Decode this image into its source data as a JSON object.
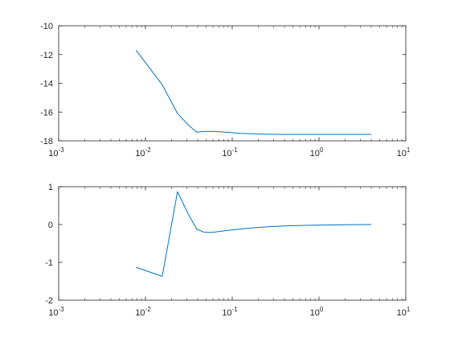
{
  "colors": {
    "line": "#0072BD",
    "axes": "#262626",
    "background": "#ffffff"
  },
  "chart_data": [
    {
      "type": "line",
      "xscale": "log",
      "xlim": [
        0.001,
        10
      ],
      "ylim": [
        -18,
        -10
      ],
      "grid": false,
      "xticks": [
        {
          "value": 0.001,
          "base": "10",
          "exp": "-3"
        },
        {
          "value": 0.01,
          "base": "10",
          "exp": "-2"
        },
        {
          "value": 0.1,
          "base": "10",
          "exp": "-1"
        },
        {
          "value": 1,
          "base": "10",
          "exp": "0"
        },
        {
          "value": 10,
          "base": "10",
          "exp": "1"
        }
      ],
      "yticks": [
        {
          "value": -18,
          "label": "-18"
        },
        {
          "value": -16,
          "label": "-16"
        },
        {
          "value": -14,
          "label": "-14"
        },
        {
          "value": -12,
          "label": "-12"
        },
        {
          "value": -10,
          "label": "-10"
        }
      ],
      "series": [
        {
          "x": [
            0.0078,
            0.0156,
            0.0234,
            0.0312,
            0.039,
            0.0469,
            0.0625,
            0.0938,
            0.125,
            0.1875,
            0.25,
            0.375,
            0.5,
            1,
            2,
            4
          ],
          "y": [
            -11.7,
            -14.1,
            -16.1,
            -16.9,
            -17.4,
            -17.35,
            -17.35,
            -17.42,
            -17.48,
            -17.52,
            -17.54,
            -17.55,
            -17.55,
            -17.55,
            -17.55,
            -17.55
          ]
        }
      ]
    },
    {
      "type": "line",
      "xscale": "log",
      "xlim": [
        0.001,
        10
      ],
      "ylim": [
        -2,
        1
      ],
      "grid": false,
      "xticks": [
        {
          "value": 0.001,
          "base": "10",
          "exp": "-3"
        },
        {
          "value": 0.01,
          "base": "10",
          "exp": "-2"
        },
        {
          "value": 0.1,
          "base": "10",
          "exp": "-1"
        },
        {
          "value": 1,
          "base": "10",
          "exp": "0"
        },
        {
          "value": 10,
          "base": "10",
          "exp": "1"
        }
      ],
      "yticks": [
        {
          "value": -2,
          "label": "-2"
        },
        {
          "value": -1,
          "label": "-1"
        },
        {
          "value": 0,
          "label": "0"
        },
        {
          "value": 1,
          "label": "1"
        }
      ],
      "series": [
        {
          "x": [
            0.0078,
            0.0156,
            0.0234,
            0.0312,
            0.039,
            0.0469,
            0.0547,
            0.0625,
            0.0938,
            0.125,
            0.1875,
            0.25,
            0.375,
            0.5,
            1,
            2,
            4
          ],
          "y": [
            -1.13,
            -1.37,
            0.87,
            0.27,
            -0.12,
            -0.2,
            -0.21,
            -0.2,
            -0.15,
            -0.12,
            -0.08,
            -0.06,
            -0.04,
            -0.03,
            -0.015,
            -0.005,
            0
          ]
        }
      ]
    }
  ]
}
